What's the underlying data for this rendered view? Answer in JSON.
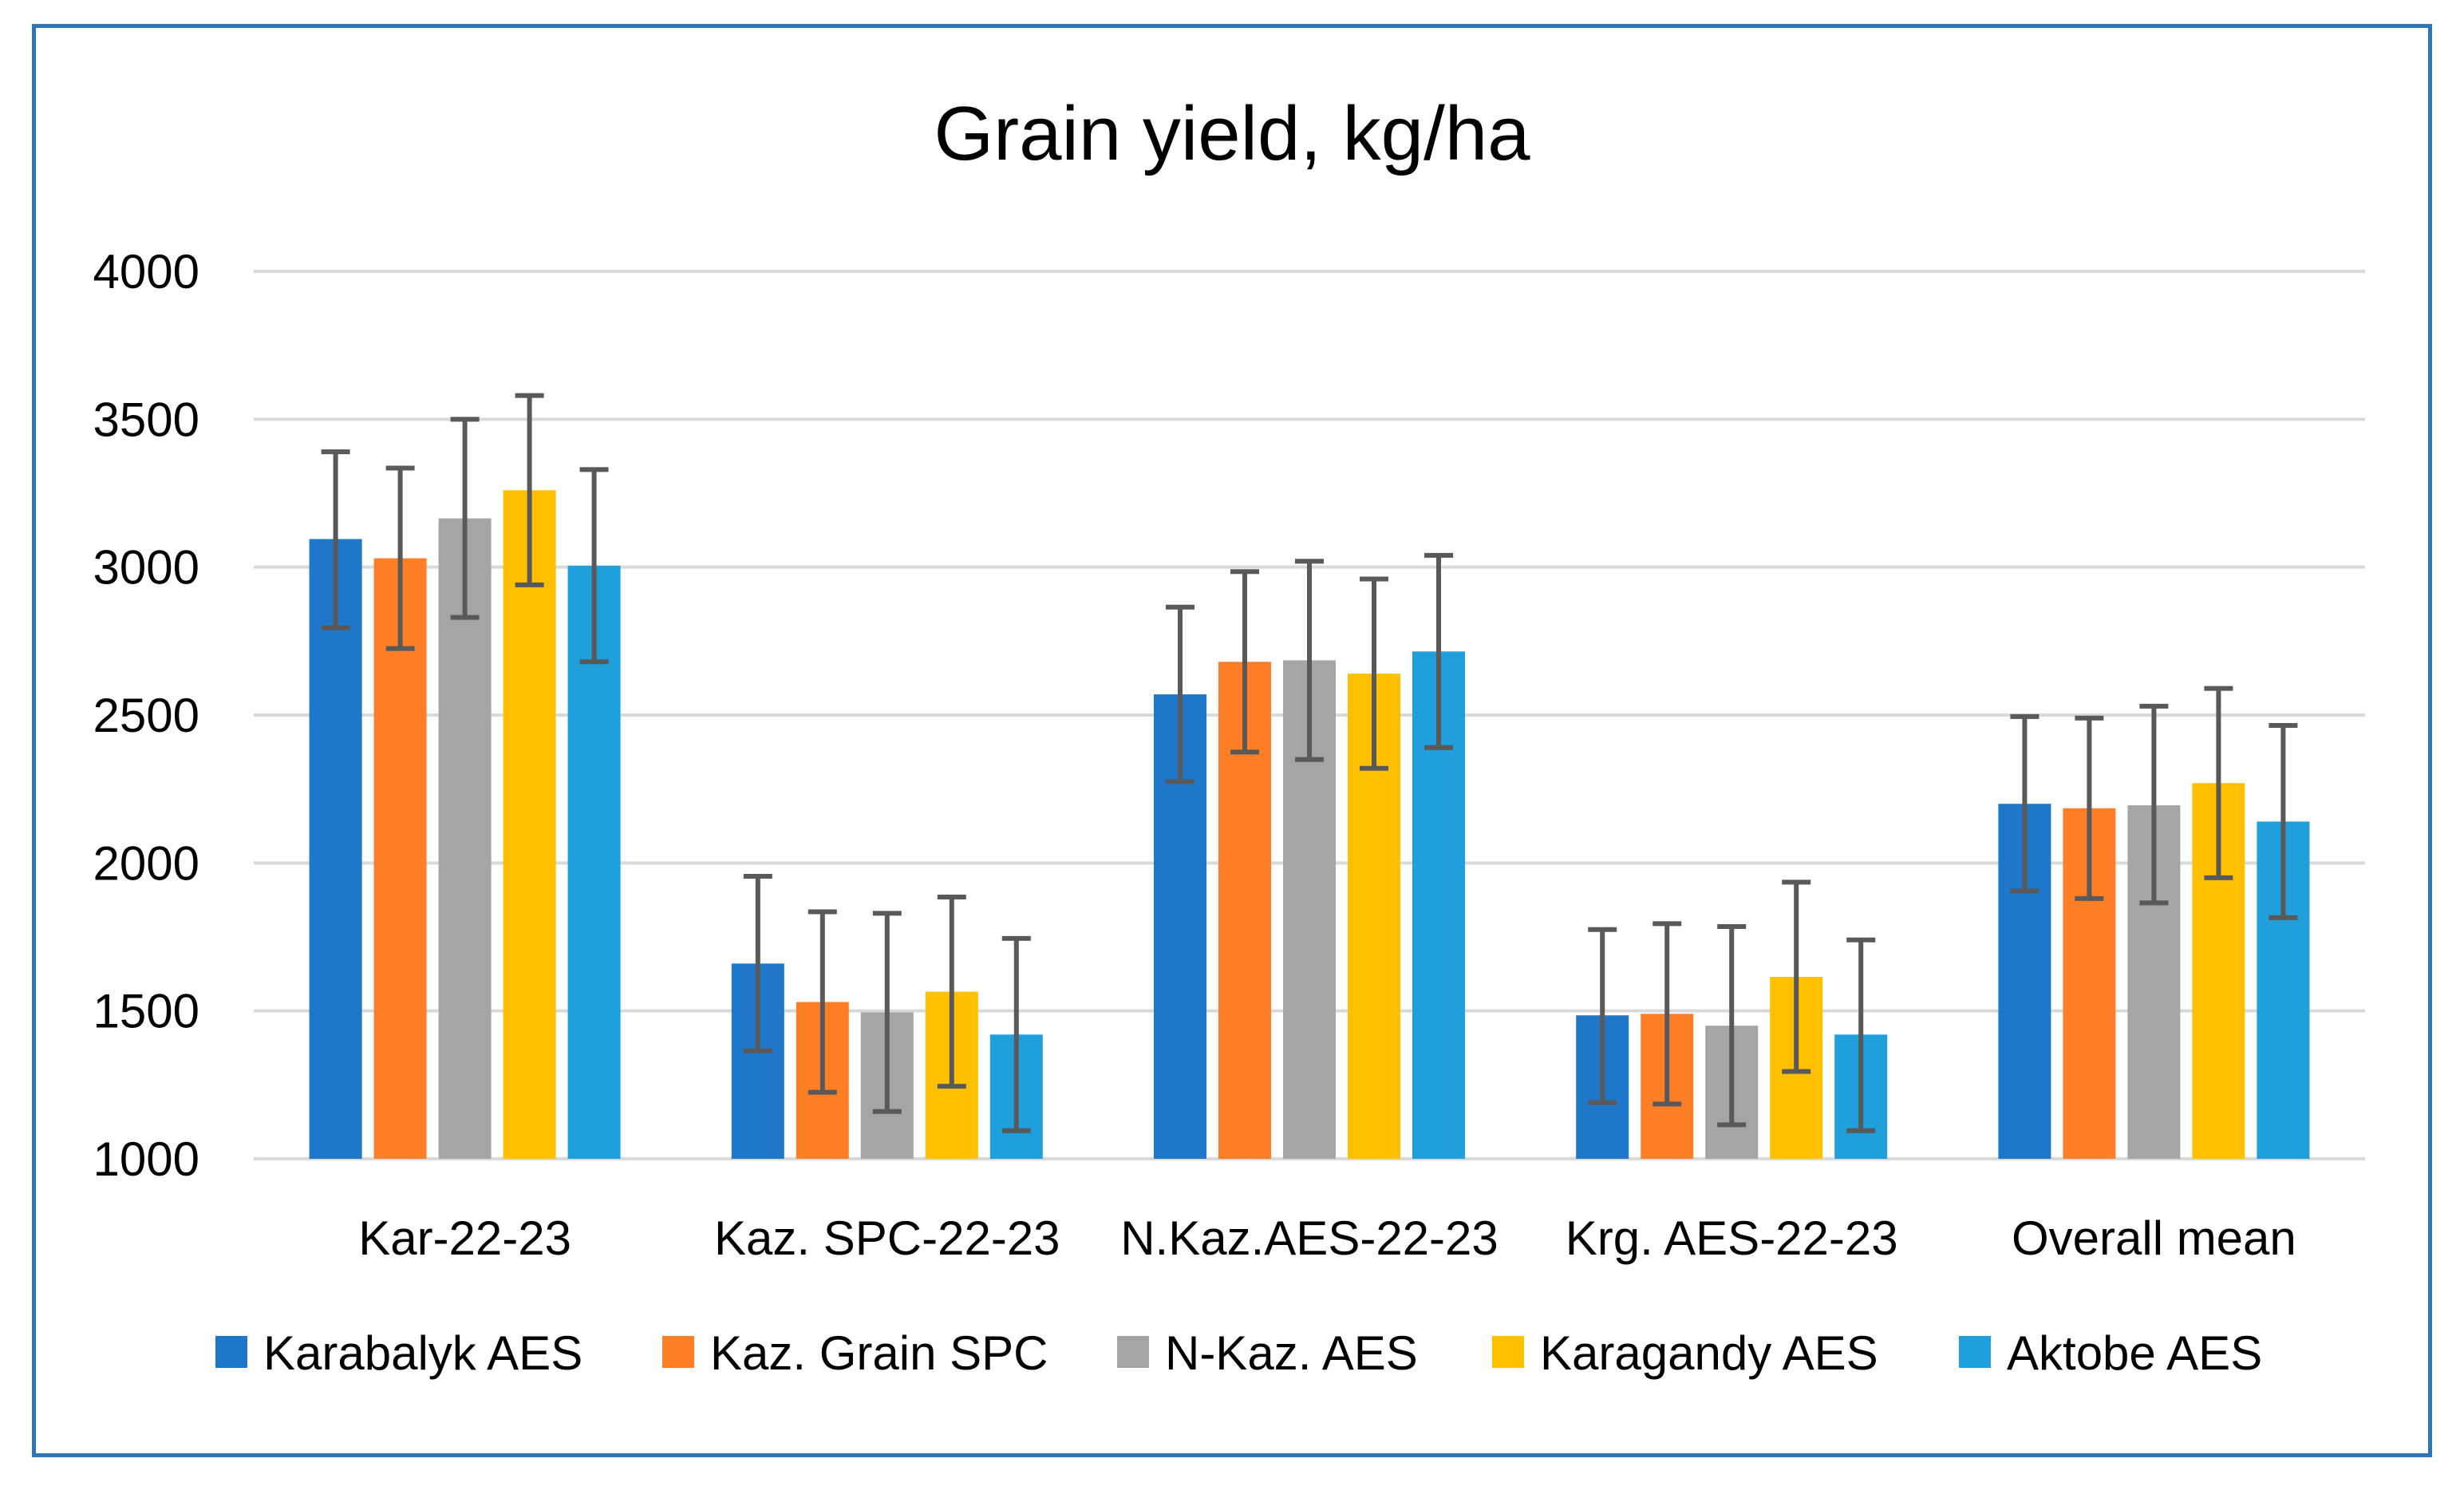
{
  "chart_data": {
    "type": "bar",
    "title": "Grain yield, kg/ha",
    "xlabel": "",
    "ylabel": "",
    "ylim": [
      1000,
      4000
    ],
    "yticks": [
      1000,
      1500,
      2000,
      2500,
      3000,
      3500,
      4000
    ],
    "grid": true,
    "legend_position": "bottom",
    "categories": [
      "Kar-22-23",
      "Kaz. SPC-22-23",
      "N.Kaz.AES-22-23",
      "Krg. AES-22-23",
      "Overall mean"
    ],
    "series": [
      {
        "name": "Karabalyk AES",
        "color": "#1f77c9",
        "values": [
          3095,
          1660,
          2570,
          1485,
          2200
        ],
        "error_low": [
          2795,
          1365,
          2275,
          1190,
          1905
        ],
        "error_high": [
          3390,
          1955,
          2865,
          1775,
          2495
        ]
      },
      {
        "name": "Kaz. Grain SPC",
        "color": "#ff7f27",
        "values": [
          3030,
          1530,
          2680,
          1490,
          2185
        ],
        "error_low": [
          2725,
          1225,
          2375,
          1185,
          1880
        ],
        "error_high": [
          3335,
          1835,
          2985,
          1795,
          2490
        ]
      },
      {
        "name": "N-Kaz. AES",
        "color": "#a5a5a5",
        "values": [
          3165,
          1495,
          2685,
          1450,
          2195
        ],
        "error_low": [
          2830,
          1160,
          2350,
          1115,
          1865
        ],
        "error_high": [
          3500,
          1830,
          3020,
          1785,
          2530
        ]
      },
      {
        "name": "Karagandy AES",
        "color": "#ffc000",
        "values": [
          3260,
          1565,
          2640,
          1615,
          2270
        ],
        "error_low": [
          2940,
          1245,
          2320,
          1295,
          1950
        ],
        "error_high": [
          3580,
          1885,
          2960,
          1935,
          2590
        ]
      },
      {
        "name": "Aktobe AES",
        "color": "#1f9fdb",
        "values": [
          3005,
          1420,
          2715,
          1420,
          2140
        ],
        "error_low": [
          2680,
          1095,
          2390,
          1095,
          1815
        ],
        "error_high": [
          3330,
          1745,
          3040,
          1740,
          2465
        ]
      }
    ]
  },
  "colors": {
    "frame": "#2e75b6",
    "grid": "#d9d9d9",
    "error_bar": "#595959"
  }
}
